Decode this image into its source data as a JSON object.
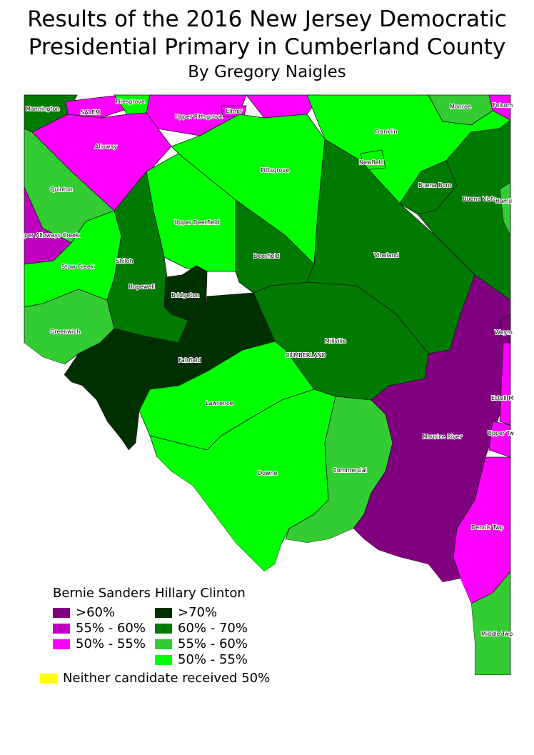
{
  "title_line1": "Results of the 2016 New Jersey Democratic",
  "title_line2": "Presidential Primary in Cumberland County",
  "subtitle": "By Gregory Naigles",
  "colors": {
    "sanders_60": "#800080",
    "sanders_55_60": "#c000c0",
    "sanders_50_55": "#ff00ff",
    "clinton_70": "#003000",
    "clinton_60_70": "#007a00",
    "clinton_55_60": "#33cc33",
    "clinton_50_55": "#00ff00",
    "neither": "#ffff00"
  },
  "municipalities": [
    {
      "name": "Mannington",
      "category": "clinton_60_70"
    },
    {
      "name": "SALEM",
      "category": "sanders_50_55"
    },
    {
      "name": "Pilesgrove",
      "category": "clinton_50_55"
    },
    {
      "name": "Upper Pittsgrove",
      "category": "sanders_50_55"
    },
    {
      "name": "Elmer",
      "category": "sanders_50_55"
    },
    {
      "name": "Monroe",
      "category": "clinton_55_60"
    },
    {
      "name": "Folsom",
      "category": "sanders_50_55"
    },
    {
      "name": "Alloway",
      "category": "sanders_50_55"
    },
    {
      "name": "Franklin",
      "category": "clinton_50_55"
    },
    {
      "name": "Newfield",
      "category": "clinton_50_55"
    },
    {
      "name": "Quinton",
      "category": "clinton_55_60"
    },
    {
      "name": "Pittsgrove",
      "category": "clinton_50_55"
    },
    {
      "name": "Buena Boro",
      "category": "clinton_60_70"
    },
    {
      "name": "Buena Vista",
      "category": "clinton_60_70"
    },
    {
      "name": "Hamil",
      "category": "clinton_55_60"
    },
    {
      "name": "per Alloways Creek",
      "category": "sanders_55_60"
    },
    {
      "name": "Upper Deerfield",
      "category": "clinton_50_55"
    },
    {
      "name": "Shiloh",
      "category": "sanders_60"
    },
    {
      "name": "Stow Creek",
      "category": "clinton_50_55"
    },
    {
      "name": "Deerfield",
      "category": "clinton_60_70"
    },
    {
      "name": "Vineland",
      "category": "clinton_60_70"
    },
    {
      "name": "Hopewell",
      "category": "clinton_60_70"
    },
    {
      "name": "Bridgeton",
      "category": "clinton_70"
    },
    {
      "name": "Weym",
      "category": "sanders_60"
    },
    {
      "name": "Greenwich",
      "category": "clinton_55_60"
    },
    {
      "name": "Millville",
      "category": "clinton_60_70"
    },
    {
      "name": "CUMBERLAND",
      "category": "clinton_60_70"
    },
    {
      "name": "Fairfield",
      "category": "clinton_70"
    },
    {
      "name": "Estell M",
      "category": "sanders_50_55"
    },
    {
      "name": "Lawrence",
      "category": "clinton_50_55"
    },
    {
      "name": "Maurice River",
      "category": "sanders_60"
    },
    {
      "name": "Upper Tw",
      "category": "sanders_50_55"
    },
    {
      "name": "Commercial",
      "category": "clinton_55_60"
    },
    {
      "name": "Downe",
      "category": "clinton_50_55"
    },
    {
      "name": "Dennis Twp",
      "category": "sanders_50_55"
    },
    {
      "name": "Middle Twp",
      "category": "clinton_55_60"
    }
  ],
  "legend": {
    "sanders_title": "Bernie Sanders",
    "clinton_title": "Hillary Clinton",
    "sanders_items": [
      {
        "label": ">60%",
        "category": "sanders_60"
      },
      {
        "label": "55% - 60%",
        "category": "sanders_55_60"
      },
      {
        "label": "50% - 55%",
        "category": "sanders_50_55"
      }
    ],
    "clinton_items": [
      {
        "label": ">70%",
        "category": "clinton_70"
      },
      {
        "label": "60% - 70%",
        "category": "clinton_60_70"
      },
      {
        "label": "55% - 60%",
        "category": "clinton_55_60"
      },
      {
        "label": "50% - 55%",
        "category": "clinton_50_55"
      }
    ],
    "neither_label": "Neither candidate received 50%"
  }
}
